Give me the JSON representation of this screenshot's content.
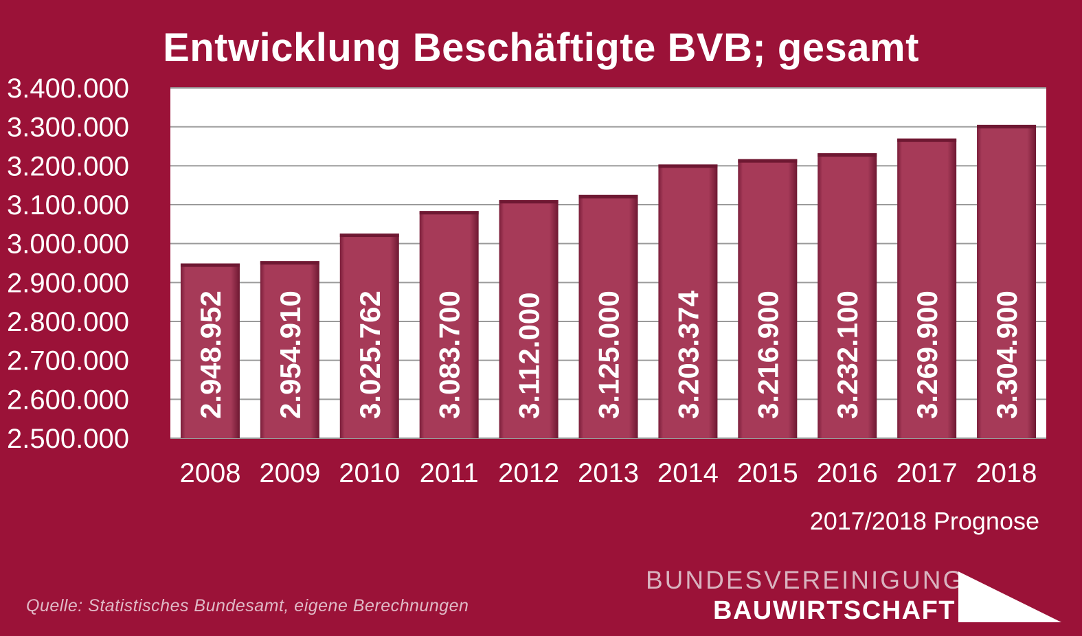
{
  "chart_data": {
    "type": "bar",
    "title": "Entwicklung Beschäftigte BVB; gesamt",
    "categories": [
      "2008",
      "2009",
      "2010",
      "2011",
      "2012",
      "2013",
      "2014",
      "2015",
      "2016",
      "2017",
      "2018"
    ],
    "values": [
      2948952,
      2954910,
      3025762,
      3083700,
      3112000,
      3125000,
      3203374,
      3216900,
      3232100,
      3269900,
      3304900
    ],
    "value_labels": [
      "2.948.952",
      "2.954.910",
      "3.025.762",
      "3.083.700",
      "3.112.000",
      "3.125.000",
      "3.203.374",
      "3.216.900",
      "3.232.100",
      "3.269.900",
      "3.304.900"
    ],
    "ylim": [
      2500000,
      3400000
    ],
    "yticks": [
      2500000,
      2600000,
      2700000,
      2800000,
      2900000,
      3000000,
      3100000,
      3200000,
      3300000,
      3400000
    ],
    "ytick_labels": [
      "2.500.000",
      "2.600.000",
      "2.700.000",
      "2.800.000",
      "2.900.000",
      "3.000.000",
      "3.100.000",
      "3.200.000",
      "3.300.000",
      "3.400.000"
    ],
    "xlabel": "",
    "ylabel": "",
    "grid": true,
    "legend": "none",
    "annotation": "2017/2018 Prognose",
    "bar_color": "#a63a58",
    "plot_background": "#ffffff",
    "background": "#9b1238"
  },
  "footer": {
    "source": "Quelle: Statistisches Bundesamt, eigene Berechnungen",
    "logo_line1": "BUNDESVEREINIGUNG",
    "logo_line2": "BAUWIRTSCHAFT"
  }
}
